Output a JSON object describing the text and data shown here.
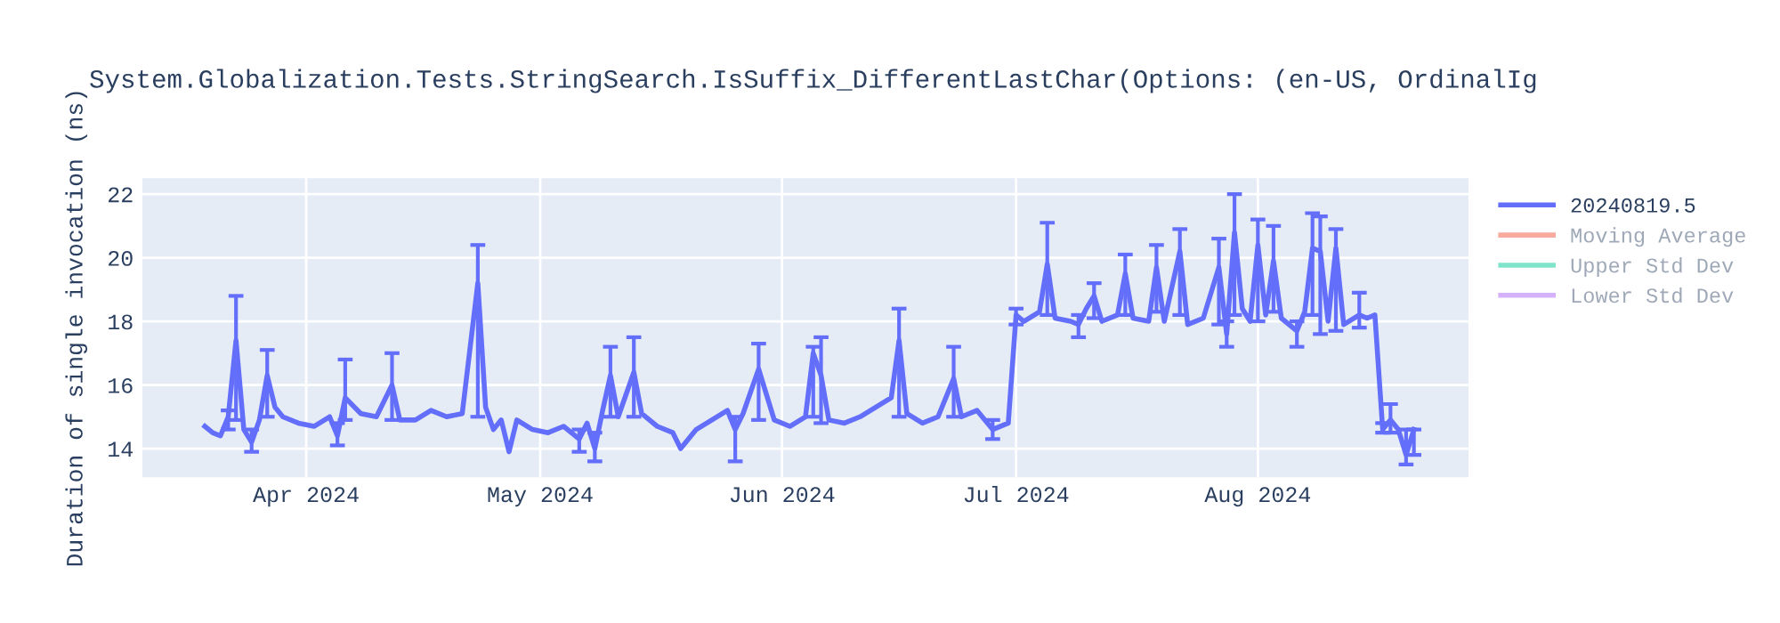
{
  "chart_data": {
    "type": "line",
    "title": "System.Globalization.Tests.StringSearch.IsSuffix_DifferentLastChar(Options: (en-US, OrdinalIg",
    "ylabel": "Duration of single invocation (ns)",
    "x": [
      "2024-03-19",
      "2024-03-20",
      "2024-03-21",
      "2024-03-22",
      "2024-03-23",
      "2024-03-24",
      "2024-03-25",
      "2024-03-26",
      "2024-03-27",
      "2024-03-28",
      "2024-03-29",
      "2024-03-31",
      "2024-04-02",
      "2024-04-04",
      "2024-04-05",
      "2024-04-06",
      "2024-04-08",
      "2024-04-10",
      "2024-04-12",
      "2024-04-13",
      "2024-04-15",
      "2024-04-17",
      "2024-04-19",
      "2024-04-21",
      "2024-04-23",
      "2024-04-24",
      "2024-04-25",
      "2024-04-26",
      "2024-04-27",
      "2024-04-28",
      "2024-04-30",
      "2024-05-02",
      "2024-05-04",
      "2024-05-06",
      "2024-05-07",
      "2024-05-08",
      "2024-05-09",
      "2024-05-10",
      "2024-05-11",
      "2024-05-13",
      "2024-05-14",
      "2024-05-16",
      "2024-05-18",
      "2024-05-19",
      "2024-05-21",
      "2024-05-23",
      "2024-05-25",
      "2024-05-26",
      "2024-05-27",
      "2024-05-29",
      "2024-05-31",
      "2024-06-02",
      "2024-06-04",
      "2024-06-05",
      "2024-06-06",
      "2024-06-07",
      "2024-06-09",
      "2024-06-11",
      "2024-06-13",
      "2024-06-15",
      "2024-06-16",
      "2024-06-17",
      "2024-06-19",
      "2024-06-21",
      "2024-06-23",
      "2024-06-24",
      "2024-06-26",
      "2024-06-28",
      "2024-06-30",
      "2024-07-01",
      "2024-07-02",
      "2024-07-04",
      "2024-07-05",
      "2024-07-06",
      "2024-07-08",
      "2024-07-09",
      "2024-07-10",
      "2024-07-11",
      "2024-07-12",
      "2024-07-14",
      "2024-07-15",
      "2024-07-16",
      "2024-07-18",
      "2024-07-19",
      "2024-07-20",
      "2024-07-22",
      "2024-07-23",
      "2024-07-25",
      "2024-07-27",
      "2024-07-28",
      "2024-07-29",
      "2024-07-30",
      "2024-07-31",
      "2024-08-01",
      "2024-08-02",
      "2024-08-03",
      "2024-08-04",
      "2024-08-06",
      "2024-08-07",
      "2024-08-08",
      "2024-08-09",
      "2024-08-10",
      "2024-08-11",
      "2024-08-12",
      "2024-08-14",
      "2024-08-15",
      "2024-08-16",
      "2024-08-17",
      "2024-08-18",
      "2024-08-19",
      "2024-08-20",
      "2024-08-21"
    ],
    "series": [
      {
        "name": "20240819.5",
        "color": "#636efa",
        "values": [
          14.7,
          14.5,
          14.4,
          15.0,
          17.4,
          14.6,
          14.2,
          14.9,
          16.3,
          15.3,
          15.0,
          14.8,
          14.7,
          15.0,
          14.4,
          15.6,
          15.1,
          15.0,
          16.0,
          14.9,
          14.9,
          15.2,
          15.0,
          15.1,
          19.2,
          15.3,
          14.6,
          14.9,
          13.9,
          14.9,
          14.6,
          14.5,
          14.7,
          14.3,
          14.8,
          14.0,
          15.2,
          16.3,
          15.0,
          16.4,
          15.1,
          14.7,
          14.5,
          14.0,
          14.6,
          14.9,
          15.2,
          14.6,
          15.1,
          16.5,
          14.9,
          14.7,
          15.0,
          17.0,
          16.3,
          14.9,
          14.8,
          15.0,
          15.3,
          15.6,
          17.4,
          15.1,
          14.8,
          15.0,
          16.2,
          15.0,
          15.2,
          14.6,
          14.8,
          18.2,
          18.0,
          18.3,
          19.8,
          18.1,
          18.0,
          17.9,
          18.4,
          18.8,
          18.0,
          18.2,
          19.5,
          18.1,
          18.0,
          19.7,
          18.0,
          20.2,
          17.9,
          18.1,
          19.7,
          17.6,
          20.8,
          18.4,
          18.0,
          20.4,
          18.2,
          19.9,
          18.1,
          17.7,
          18.3,
          20.3,
          20.2,
          18.0,
          20.3,
          17.9,
          18.2,
          18.1,
          18.2,
          14.6,
          14.9,
          14.6,
          13.8,
          14.6
        ],
        "errors": [
          null,
          null,
          null,
          [
            14.6,
            15.2
          ],
          [
            14.9,
            18.8
          ],
          null,
          [
            13.9,
            14.6
          ],
          null,
          [
            15.0,
            17.1
          ],
          null,
          null,
          null,
          null,
          null,
          [
            14.1,
            14.8
          ],
          [
            14.9,
            16.8
          ],
          null,
          null,
          [
            14.9,
            17.0
          ],
          null,
          null,
          null,
          null,
          null,
          [
            15.0,
            20.4
          ],
          null,
          null,
          null,
          null,
          null,
          null,
          null,
          null,
          [
            13.9,
            14.6
          ],
          null,
          [
            13.6,
            14.5
          ],
          null,
          [
            15.0,
            17.2
          ],
          null,
          [
            15.0,
            17.5
          ],
          null,
          null,
          null,
          null,
          null,
          null,
          null,
          [
            13.6,
            15.0
          ],
          null,
          [
            14.9,
            17.3
          ],
          null,
          null,
          null,
          [
            15.0,
            17.2
          ],
          [
            14.8,
            17.5
          ],
          null,
          null,
          null,
          null,
          null,
          [
            15.0,
            18.4
          ],
          null,
          null,
          null,
          [
            15.0,
            17.2
          ],
          null,
          null,
          [
            14.3,
            14.9
          ],
          null,
          [
            17.9,
            18.4
          ],
          null,
          null,
          [
            18.2,
            21.1
          ],
          null,
          null,
          [
            17.5,
            18.2
          ],
          null,
          [
            18.1,
            19.2
          ],
          null,
          null,
          [
            18.2,
            20.1
          ],
          null,
          null,
          [
            18.3,
            20.4
          ],
          null,
          [
            18.2,
            20.9
          ],
          null,
          null,
          [
            17.9,
            20.6
          ],
          [
            17.2,
            18.0
          ],
          [
            18.2,
            22.0
          ],
          null,
          null,
          [
            18.0,
            21.2
          ],
          null,
          [
            18.3,
            21.0
          ],
          null,
          [
            17.2,
            18.0
          ],
          null,
          [
            18.2,
            21.4
          ],
          [
            17.6,
            21.3
          ],
          null,
          [
            17.7,
            20.9
          ],
          null,
          [
            17.8,
            18.9
          ],
          null,
          null,
          [
            14.5,
            14.8
          ],
          [
            14.5,
            15.4
          ],
          null,
          [
            13.5,
            14.6
          ],
          [
            13.8,
            14.6
          ]
        ]
      },
      {
        "name": "Moving Average",
        "color": "#ef553b",
        "values": [
          null,
          null,
          null,
          null,
          null,
          null,
          null,
          null,
          null,
          null,
          null,
          null,
          null,
          null,
          null,
          null,
          null,
          null,
          null,
          null,
          null,
          null,
          null,
          null,
          null,
          null,
          null,
          null,
          null,
          null,
          null,
          null,
          null,
          null,
          null,
          null,
          null,
          null,
          null,
          null,
          null,
          null,
          null,
          null,
          null,
          null,
          null,
          null,
          null,
          null,
          null,
          null,
          null,
          null,
          null,
          null,
          null,
          null,
          null,
          null,
          null,
          null,
          null,
          null,
          null,
          null,
          null,
          null,
          null,
          null,
          null,
          null,
          null,
          null,
          null,
          null,
          null,
          null,
          null,
          null,
          null,
          null,
          null,
          null,
          null,
          null,
          null,
          null,
          null,
          null,
          null,
          null,
          null,
          null,
          null,
          null,
          null,
          null,
          null,
          null,
          null,
          null,
          null,
          null,
          null,
          null,
          null,
          null,
          null,
          null,
          null,
          null
        ]
      },
      {
        "name": "Upper Std Dev",
        "color": "#00cc96",
        "values": [
          null,
          null,
          null,
          null,
          null,
          null,
          null,
          null,
          null,
          null,
          null,
          null,
          null,
          null,
          null,
          null,
          null,
          null,
          null,
          null,
          null,
          null,
          null,
          null,
          null,
          null,
          null,
          null,
          null,
          null,
          null,
          null,
          null,
          null,
          null,
          null,
          null,
          null,
          null,
          null,
          null,
          null,
          null,
          null,
          null,
          null,
          null,
          null,
          null,
          null,
          null,
          null,
          null,
          null,
          null,
          null,
          null,
          null,
          null,
          null,
          null,
          null,
          null,
          null,
          null,
          null,
          null,
          null,
          null,
          null,
          null,
          null,
          null,
          null,
          null,
          null,
          null,
          null,
          null,
          null,
          null,
          null,
          null,
          null,
          null,
          null,
          null,
          null,
          null,
          null,
          null,
          null,
          null,
          null,
          null,
          null,
          null,
          null,
          null,
          null,
          null,
          null,
          null,
          null,
          null,
          null,
          null,
          null,
          null,
          null,
          null,
          null
        ]
      },
      {
        "name": "Lower Std Dev",
        "color": "#ab63fa",
        "values": [
          null,
          null,
          null,
          null,
          null,
          null,
          null,
          null,
          null,
          null,
          null,
          null,
          null,
          null,
          null,
          null,
          null,
          null,
          null,
          null,
          null,
          null,
          null,
          null,
          null,
          null,
          null,
          null,
          null,
          null,
          null,
          null,
          null,
          null,
          null,
          null,
          null,
          null,
          null,
          null,
          null,
          null,
          null,
          null,
          null,
          null,
          null,
          null,
          null,
          null,
          null,
          null,
          null,
          null,
          null,
          null,
          null,
          null,
          null,
          null,
          null,
          null,
          null,
          null,
          null,
          null,
          null,
          null,
          null,
          null,
          null,
          null,
          null,
          null,
          null,
          null,
          null,
          null,
          null,
          null,
          null,
          null,
          null,
          null,
          null,
          null,
          null,
          null,
          null,
          null,
          null,
          null,
          null,
          null,
          null,
          null,
          null,
          null,
          null,
          null,
          null,
          null,
          null,
          null,
          null,
          null,
          null,
          null,
          null,
          null,
          null,
          null
        ]
      }
    ],
    "xlim": [
      "2024-03-11",
      "2024-08-28"
    ],
    "xticks": [
      {
        "value": "2024-04-01",
        "label": "Apr 2024"
      },
      {
        "value": "2024-05-01",
        "label": "May 2024"
      },
      {
        "value": "2024-06-01",
        "label": "Jun 2024"
      },
      {
        "value": "2024-07-01",
        "label": "Jul 2024"
      },
      {
        "value": "2024-08-01",
        "label": "Aug 2024"
      }
    ],
    "ylim": [
      13.1,
      22.5
    ],
    "yticks": [
      14,
      16,
      18,
      20,
      22
    ],
    "grid": true,
    "legend": "top right"
  }
}
